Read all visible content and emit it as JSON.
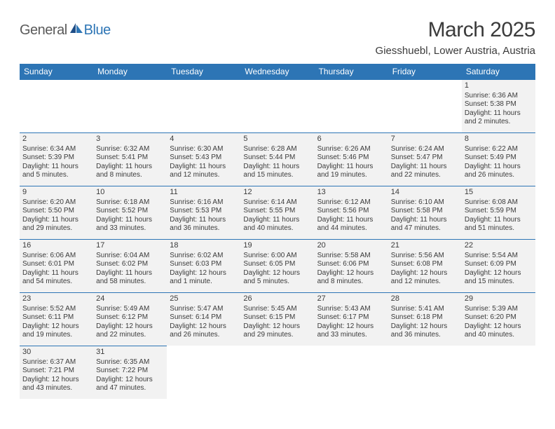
{
  "logo": {
    "part1": "General",
    "part2": "Blue"
  },
  "header": {
    "title": "March 2025",
    "location": "Giesshuebl, Lower Austria, Austria"
  },
  "colors": {
    "header_bg": "#2d75b5",
    "header_text": "#ffffff",
    "cell_bg": "#f2f2f2",
    "text": "#3b3b3b",
    "border": "#2d75b5"
  },
  "typography": {
    "title_fontsize": 30,
    "location_fontsize": 15,
    "dayhead_fontsize": 12,
    "cell_fontsize": 10
  },
  "calendar": {
    "day_names": [
      "Sunday",
      "Monday",
      "Tuesday",
      "Wednesday",
      "Thursday",
      "Friday",
      "Saturday"
    ],
    "leading_blanks": 6,
    "days": [
      {
        "n": "1",
        "sunrise": "6:36 AM",
        "sunset": "5:38 PM",
        "daylight": "11 hours and 2 minutes."
      },
      {
        "n": "2",
        "sunrise": "6:34 AM",
        "sunset": "5:39 PM",
        "daylight": "11 hours and 5 minutes."
      },
      {
        "n": "3",
        "sunrise": "6:32 AM",
        "sunset": "5:41 PM",
        "daylight": "11 hours and 8 minutes."
      },
      {
        "n": "4",
        "sunrise": "6:30 AM",
        "sunset": "5:43 PM",
        "daylight": "11 hours and 12 minutes."
      },
      {
        "n": "5",
        "sunrise": "6:28 AM",
        "sunset": "5:44 PM",
        "daylight": "11 hours and 15 minutes."
      },
      {
        "n": "6",
        "sunrise": "6:26 AM",
        "sunset": "5:46 PM",
        "daylight": "11 hours and 19 minutes."
      },
      {
        "n": "7",
        "sunrise": "6:24 AM",
        "sunset": "5:47 PM",
        "daylight": "11 hours and 22 minutes."
      },
      {
        "n": "8",
        "sunrise": "6:22 AM",
        "sunset": "5:49 PM",
        "daylight": "11 hours and 26 minutes."
      },
      {
        "n": "9",
        "sunrise": "6:20 AM",
        "sunset": "5:50 PM",
        "daylight": "11 hours and 29 minutes."
      },
      {
        "n": "10",
        "sunrise": "6:18 AM",
        "sunset": "5:52 PM",
        "daylight": "11 hours and 33 minutes."
      },
      {
        "n": "11",
        "sunrise": "6:16 AM",
        "sunset": "5:53 PM",
        "daylight": "11 hours and 36 minutes."
      },
      {
        "n": "12",
        "sunrise": "6:14 AM",
        "sunset": "5:55 PM",
        "daylight": "11 hours and 40 minutes."
      },
      {
        "n": "13",
        "sunrise": "6:12 AM",
        "sunset": "5:56 PM",
        "daylight": "11 hours and 44 minutes."
      },
      {
        "n": "14",
        "sunrise": "6:10 AM",
        "sunset": "5:58 PM",
        "daylight": "11 hours and 47 minutes."
      },
      {
        "n": "15",
        "sunrise": "6:08 AM",
        "sunset": "5:59 PM",
        "daylight": "11 hours and 51 minutes."
      },
      {
        "n": "16",
        "sunrise": "6:06 AM",
        "sunset": "6:01 PM",
        "daylight": "11 hours and 54 minutes."
      },
      {
        "n": "17",
        "sunrise": "6:04 AM",
        "sunset": "6:02 PM",
        "daylight": "11 hours and 58 minutes."
      },
      {
        "n": "18",
        "sunrise": "6:02 AM",
        "sunset": "6:03 PM",
        "daylight": "12 hours and 1 minute."
      },
      {
        "n": "19",
        "sunrise": "6:00 AM",
        "sunset": "6:05 PM",
        "daylight": "12 hours and 5 minutes."
      },
      {
        "n": "20",
        "sunrise": "5:58 AM",
        "sunset": "6:06 PM",
        "daylight": "12 hours and 8 minutes."
      },
      {
        "n": "21",
        "sunrise": "5:56 AM",
        "sunset": "6:08 PM",
        "daylight": "12 hours and 12 minutes."
      },
      {
        "n": "22",
        "sunrise": "5:54 AM",
        "sunset": "6:09 PM",
        "daylight": "12 hours and 15 minutes."
      },
      {
        "n": "23",
        "sunrise": "5:52 AM",
        "sunset": "6:11 PM",
        "daylight": "12 hours and 19 minutes."
      },
      {
        "n": "24",
        "sunrise": "5:49 AM",
        "sunset": "6:12 PM",
        "daylight": "12 hours and 22 minutes."
      },
      {
        "n": "25",
        "sunrise": "5:47 AM",
        "sunset": "6:14 PM",
        "daylight": "12 hours and 26 minutes."
      },
      {
        "n": "26",
        "sunrise": "5:45 AM",
        "sunset": "6:15 PM",
        "daylight": "12 hours and 29 minutes."
      },
      {
        "n": "27",
        "sunrise": "5:43 AM",
        "sunset": "6:17 PM",
        "daylight": "12 hours and 33 minutes."
      },
      {
        "n": "28",
        "sunrise": "5:41 AM",
        "sunset": "6:18 PM",
        "daylight": "12 hours and 36 minutes."
      },
      {
        "n": "29",
        "sunrise": "5:39 AM",
        "sunset": "6:20 PM",
        "daylight": "12 hours and 40 minutes."
      },
      {
        "n": "30",
        "sunrise": "6:37 AM",
        "sunset": "7:21 PM",
        "daylight": "12 hours and 43 minutes."
      },
      {
        "n": "31",
        "sunrise": "6:35 AM",
        "sunset": "7:22 PM",
        "daylight": "12 hours and 47 minutes."
      }
    ],
    "labels": {
      "sunrise": "Sunrise:",
      "sunset": "Sunset:",
      "daylight": "Daylight:"
    }
  }
}
